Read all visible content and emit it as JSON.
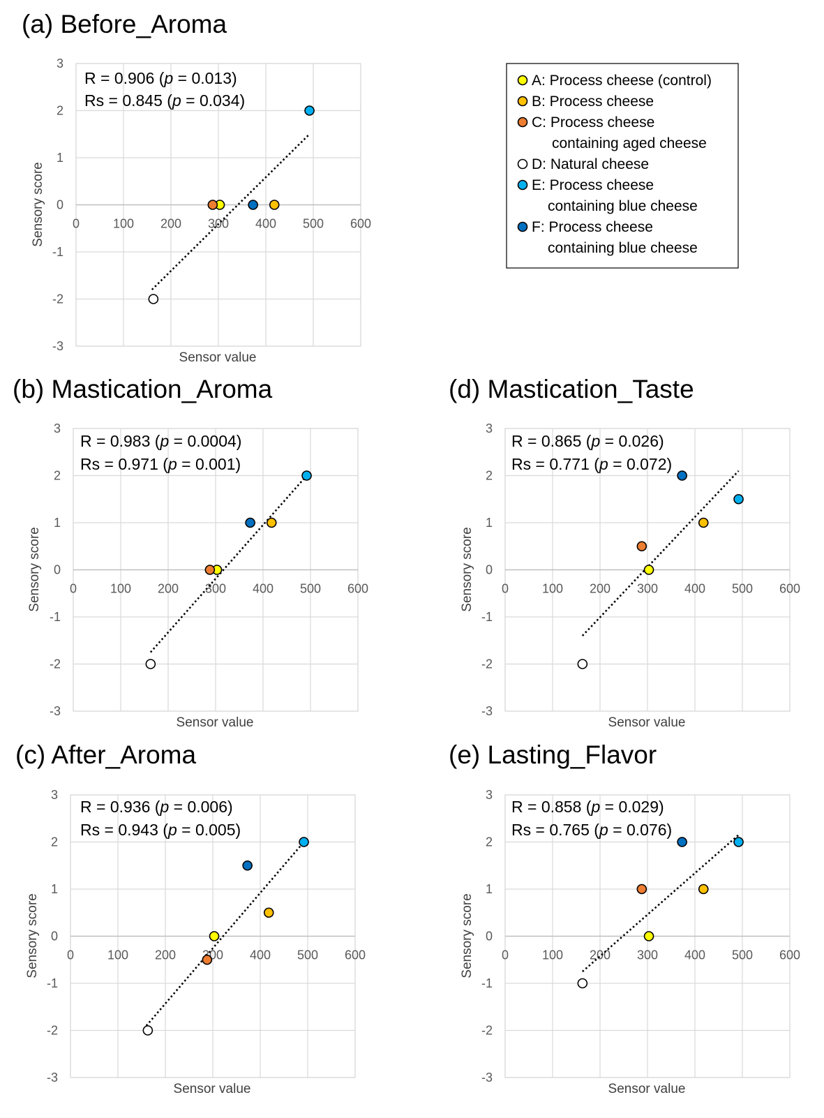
{
  "colors": {
    "A": "#ffff00",
    "B": "#ffc000",
    "C": "#ed7d31",
    "D": "#ffffff",
    "E": "#00b0f0",
    "F": "#0070c0",
    "grid": "#d9d9d9",
    "axis": "#bfbfbf"
  },
  "legend": {
    "entries": [
      {
        "key": "A",
        "lines": [
          "A: Process cheese (control)"
        ]
      },
      {
        "key": "B",
        "lines": [
          "B: Process cheese"
        ]
      },
      {
        "key": "C",
        "lines": [
          "C: Process cheese",
          "containing aged cheese"
        ]
      },
      {
        "key": "D",
        "lines": [
          "D: Natural cheese"
        ]
      },
      {
        "key": "E",
        "lines": [
          "E: Process cheese",
          "containing blue cheese"
        ]
      },
      {
        "key": "F",
        "lines": [
          "F: Process cheese",
          "containing blue cheese"
        ]
      }
    ]
  },
  "chart_data": [
    {
      "id": "a",
      "type": "scatter",
      "title": "(a) Before_Aroma",
      "xlabel": "Sensor value",
      "ylabel": "Sensory score",
      "xlim": [
        0,
        600
      ],
      "ylim": [
        -3,
        3
      ],
      "xticks": [
        "0",
        "100",
        "200",
        "300",
        "400",
        "500",
        "600"
      ],
      "yticks": [
        "3",
        "2",
        "1",
        "0",
        "-1",
        "-2",
        "-3"
      ],
      "grid": true,
      "stats": {
        "r": "R = 0.906 (",
        "r_p": "p",
        "r_rest": " = 0.013)",
        "rs": "Rs = 0.845 (",
        "rs_p": "p",
        "rs_rest": " = 0.034)"
      },
      "points": [
        {
          "key": "A",
          "x": 303,
          "y": 0
        },
        {
          "key": "B",
          "x": 418,
          "y": 0
        },
        {
          "key": "C",
          "x": 288,
          "y": 0
        },
        {
          "key": "D",
          "x": 163,
          "y": -2
        },
        {
          "key": "E",
          "x": 492,
          "y": 2
        },
        {
          "key": "F",
          "x": 373,
          "y": 0
        }
      ],
      "trendline": [
        [
          160,
          -1.8
        ],
        [
          492,
          1.5
        ]
      ]
    },
    {
      "id": "b",
      "type": "scatter",
      "title": "(b) Mastication_Aroma",
      "xlabel": "Sensor value",
      "ylabel": "Sensory score",
      "xlim": [
        0,
        600
      ],
      "ylim": [
        -3,
        3
      ],
      "xticks": [
        "0",
        "100",
        "200",
        "300",
        "400",
        "500",
        "600"
      ],
      "yticks": [
        "3",
        "2",
        "1",
        "0",
        "-1",
        "-2",
        "-3"
      ],
      "grid": true,
      "stats": {
        "r": "R = 0.983 (",
        "r_p": "p",
        "r_rest": " = 0.0004)",
        "rs": "Rs = 0.971 (",
        "rs_p": "p",
        "rs_rest": " = 0.001)"
      },
      "points": [
        {
          "key": "A",
          "x": 303,
          "y": 0
        },
        {
          "key": "B",
          "x": 418,
          "y": 1
        },
        {
          "key": "C",
          "x": 288,
          "y": 0
        },
        {
          "key": "D",
          "x": 163,
          "y": -2
        },
        {
          "key": "E",
          "x": 492,
          "y": 2
        },
        {
          "key": "F",
          "x": 373,
          "y": 1
        }
      ],
      "trendline": [
        [
          163,
          -1.75
        ],
        [
          492,
          2.0
        ]
      ]
    },
    {
      "id": "c",
      "type": "scatter",
      "title": "(c) After_Aroma",
      "xlabel": "Sensor value",
      "ylabel": "Sensory score",
      "xlim": [
        0,
        600
      ],
      "ylim": [
        -3,
        3
      ],
      "xticks": [
        "0",
        "100",
        "200",
        "300",
        "400",
        "500",
        "600"
      ],
      "yticks": [
        "3",
        "2",
        "1",
        "0",
        "-1",
        "-2",
        "-3"
      ],
      "grid": true,
      "stats": {
        "r": "R = 0.936 (",
        "r_p": "p",
        "r_rest": " = 0.006)",
        "rs": "Rs = 0.943 (",
        "rs_p": "p",
        "rs_rest": " = 0.005)"
      },
      "points": [
        {
          "key": "A",
          "x": 303,
          "y": 0
        },
        {
          "key": "B",
          "x": 418,
          "y": 0.5
        },
        {
          "key": "C",
          "x": 288,
          "y": -0.5
        },
        {
          "key": "D",
          "x": 163,
          "y": -2
        },
        {
          "key": "E",
          "x": 492,
          "y": 2
        },
        {
          "key": "F",
          "x": 373,
          "y": 1.5
        }
      ],
      "trendline": [
        [
          160,
          -1.9
        ],
        [
          492,
          2.0
        ]
      ]
    },
    {
      "id": "d",
      "type": "scatter",
      "title": "(d) Mastication_Taste",
      "xlabel": "Sensor value",
      "ylabel": "Sensory score",
      "xlim": [
        0,
        600
      ],
      "ylim": [
        -3,
        3
      ],
      "xticks": [
        "0",
        "100",
        "200",
        "300",
        "400",
        "500",
        "600"
      ],
      "yticks": [
        "3",
        "2",
        "1",
        "0",
        "-1",
        "-2",
        "-3"
      ],
      "grid": true,
      "stats": {
        "r": "R = 0.865 (",
        "r_p": "p",
        "r_rest": " = 0.026)",
        "rs": "Rs = 0.771 (",
        "rs_p": "p",
        "rs_rest": " = 0.072)"
      },
      "points": [
        {
          "key": "A",
          "x": 303,
          "y": 0
        },
        {
          "key": "B",
          "x": 418,
          "y": 1
        },
        {
          "key": "C",
          "x": 288,
          "y": 0.5
        },
        {
          "key": "D",
          "x": 163,
          "y": -2
        },
        {
          "key": "E",
          "x": 492,
          "y": 1.5
        },
        {
          "key": "F",
          "x": 373,
          "y": 2
        }
      ],
      "trendline": [
        [
          163,
          -1.4
        ],
        [
          492,
          2.1
        ]
      ]
    },
    {
      "id": "e",
      "type": "scatter",
      "title": "(e) Lasting_Flavor",
      "xlabel": "Sensor value",
      "ylabel": "Sensory score",
      "xlim": [
        0,
        600
      ],
      "ylim": [
        -3,
        3
      ],
      "xticks": [
        "0",
        "100",
        "200",
        "300",
        "400",
        "500",
        "600"
      ],
      "yticks": [
        "3",
        "2",
        "1",
        "0",
        "-1",
        "-2",
        "-3"
      ],
      "grid": true,
      "stats": {
        "r": "R = 0.858 (",
        "r_p": "p",
        "r_rest": " = 0.029)",
        "rs": "Rs = 0.765 (",
        "rs_p": "p",
        "rs_rest": " = 0.076)"
      },
      "points": [
        {
          "key": "A",
          "x": 303,
          "y": 0
        },
        {
          "key": "B",
          "x": 418,
          "y": 1
        },
        {
          "key": "C",
          "x": 288,
          "y": 1
        },
        {
          "key": "D",
          "x": 163,
          "y": -1
        },
        {
          "key": "E",
          "x": 492,
          "y": 2
        },
        {
          "key": "F",
          "x": 373,
          "y": 2
        }
      ],
      "trendline": [
        [
          163,
          -0.75
        ],
        [
          492,
          2.15
        ]
      ]
    }
  ]
}
